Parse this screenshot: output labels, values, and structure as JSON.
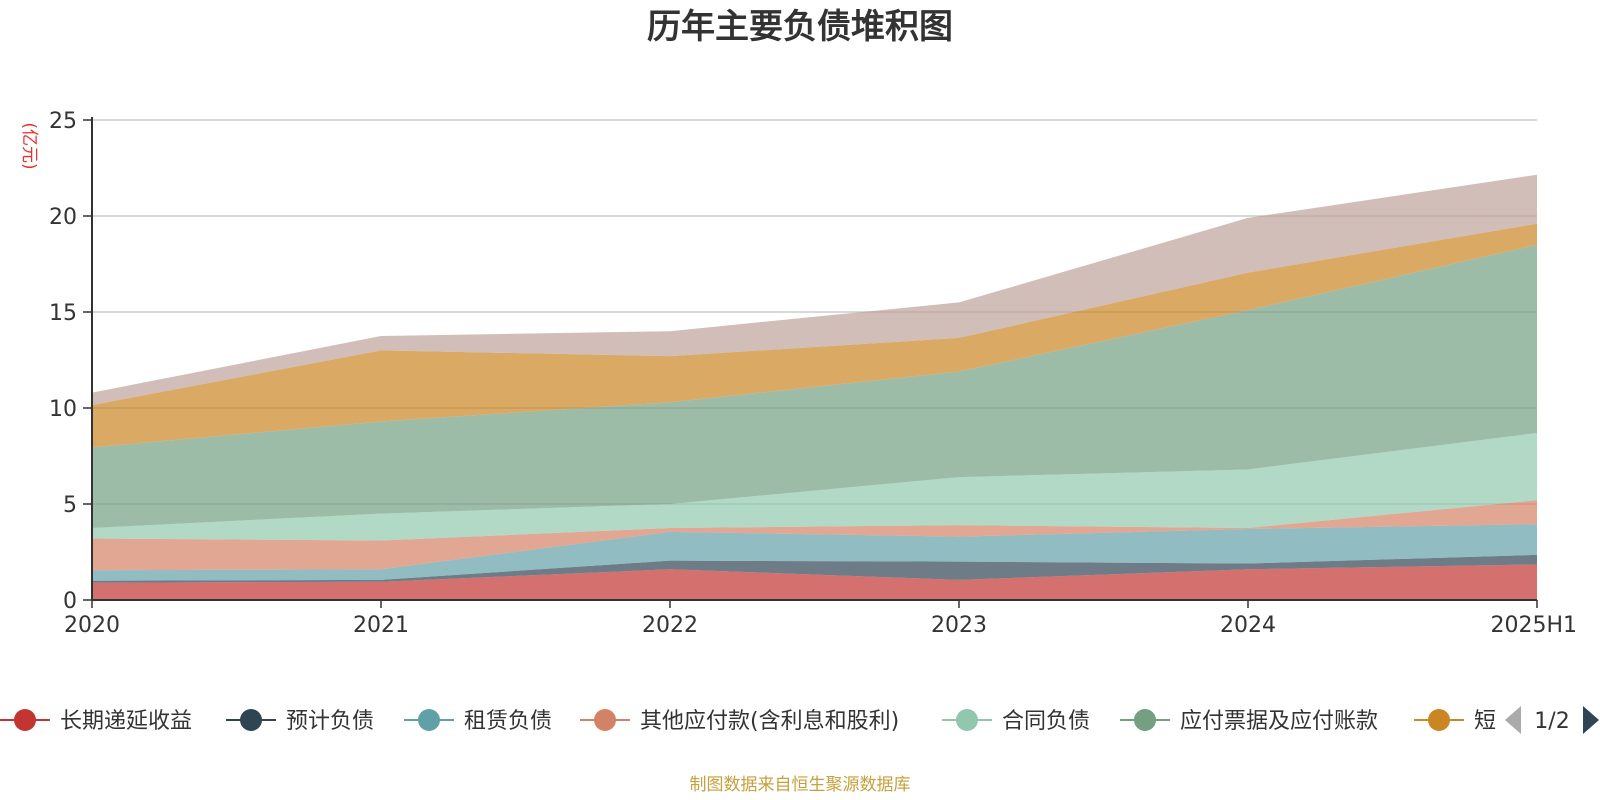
{
  "chart_data": {
    "type": "area",
    "stacked": true,
    "title": "历年主要负债堆积图",
    "ylabel": "(亿元)",
    "categories": [
      "2020",
      "2021",
      "2022",
      "2023",
      "2024",
      "2025H1"
    ],
    "ylim": [
      0,
      25
    ],
    "yticks": [
      "0",
      "5",
      "10",
      "15",
      "20",
      "25"
    ],
    "grid": true,
    "legend_position": "bottom",
    "series": [
      {
        "name": "长期递延收益",
        "color": "#c23531",
        "values": [
          0.9,
          0.95,
          1.6,
          1.05,
          1.6,
          1.85
        ]
      },
      {
        "name": "预计负债",
        "color": "#2f4554",
        "values": [
          0.1,
          0.1,
          0.45,
          0.95,
          0.3,
          0.5
        ]
      },
      {
        "name": "租赁负债",
        "color": "#61a0a8",
        "values": [
          0.55,
          0.55,
          1.5,
          1.3,
          1.8,
          1.6
        ]
      },
      {
        "name": "其他应付款(含利息和股利)",
        "color": "#d48265",
        "values": [
          1.65,
          1.5,
          0.2,
          0.6,
          0.05,
          1.25
        ]
      },
      {
        "name": "合同负债",
        "color": "#91c7ae",
        "values": [
          0.55,
          1.4,
          1.25,
          2.5,
          3.05,
          3.5
        ]
      },
      {
        "name": "应付票据及应付账款",
        "color": "#749f83",
        "values": [
          4.2,
          4.8,
          5.3,
          5.5,
          8.3,
          9.8
        ]
      },
      {
        "name": "短期借款",
        "color": "#ca8622",
        "values": [
          2.2,
          3.7,
          2.4,
          1.75,
          1.95,
          1.1
        ]
      },
      {
        "name": "",
        "color": "#bda29a",
        "values": [
          0.65,
          0.75,
          1.3,
          1.85,
          2.85,
          2.55
        ]
      }
    ]
  },
  "legend": {
    "items": [
      {
        "label": "长期递延收益",
        "color": "#c23531"
      },
      {
        "label": "预计负债",
        "color": "#2f4554"
      },
      {
        "label": "租赁负债",
        "color": "#61a0a8"
      },
      {
        "label": "其他应付款(含利息和股利)",
        "color": "#d48265"
      },
      {
        "label": "合同负债",
        "color": "#91c7ae"
      },
      {
        "label": "应付票据及应付账款",
        "color": "#749f83"
      },
      {
        "label": "短",
        "color": "#ca8622"
      }
    ],
    "page_indicator": "1/2"
  },
  "source_note": "制图数据来自恒生聚源数据库"
}
